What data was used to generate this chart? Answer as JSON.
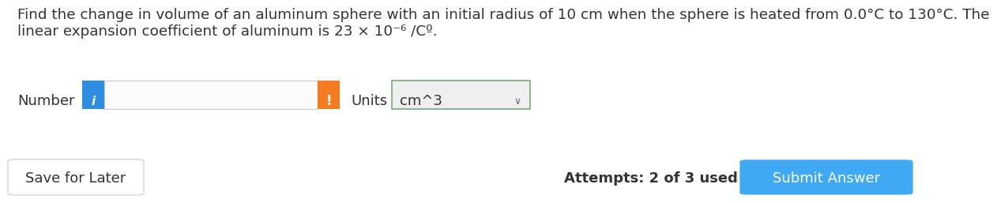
{
  "bg_color": "#ffffff",
  "text_line1": "Find the change in volume of an aluminum sphere with an initial radius of 10 cm when the sphere is heated from 0.0°C to 130°C. The",
  "text_line2": "linear expansion coefficient of aluminum is 23 × 10⁻⁶ /Cº.",
  "label_number": "Number",
  "label_units": "Units",
  "units_value": "cm^3",
  "info_icon_color": "#2d8de0",
  "warn_icon_color": "#f47c20",
  "units_border_color": "#7aaa7a",
  "units_bg_color": "#efefef",
  "save_btn_text": "Save for Later",
  "save_btn_border": "#cccccc",
  "attempts_text": "Attempts: 2 of 3 used",
  "submit_btn_text": "Submit Answer",
  "submit_btn_color": "#3fa9f5",
  "text_color": "#333333",
  "font_size_body": 13.2,
  "font_size_ui": 13.0,
  "font_size_btn": 13.0
}
